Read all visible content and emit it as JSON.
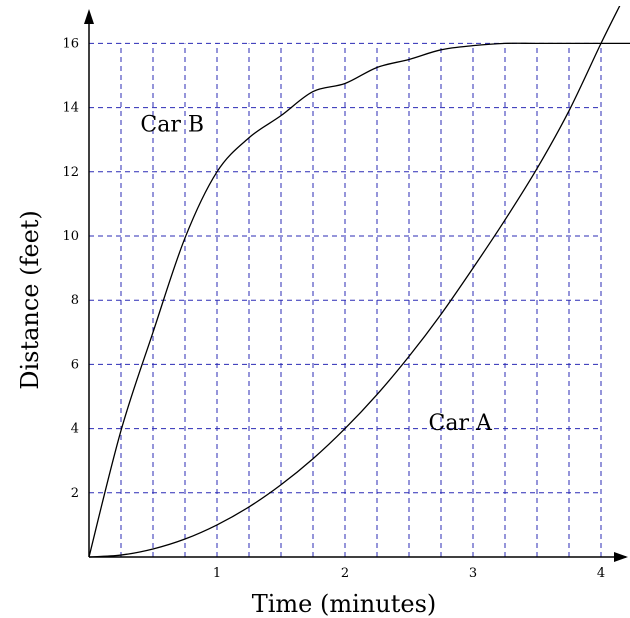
{
  "chart_data": {
    "type": "line",
    "title": "",
    "xlabel": "Time (minutes)",
    "ylabel": "Distance (feet)",
    "xlim": [
      0,
      4.2
    ],
    "ylim": [
      0,
      16.6
    ],
    "grid": true,
    "x_gridlines": [
      0.25,
      0.5,
      0.75,
      1,
      1.25,
      1.5,
      1.75,
      2,
      2.25,
      2.5,
      2.75,
      3,
      3.25,
      3.5,
      3.75,
      4
    ],
    "y_gridlines": [
      2,
      4,
      6,
      8,
      10,
      12,
      14,
      16
    ],
    "x_ticks": [
      {
        "value": 1,
        "label": "1"
      },
      {
        "value": 2,
        "label": "2"
      },
      {
        "value": 3,
        "label": "3"
      },
      {
        "value": 4,
        "label": "4"
      }
    ],
    "y_ticks": [
      {
        "value": 2,
        "label": "2"
      },
      {
        "value": 4,
        "label": "4"
      },
      {
        "value": 6,
        "label": "6"
      },
      {
        "value": 8,
        "label": "8"
      },
      {
        "value": 10,
        "label": "10"
      },
      {
        "value": 12,
        "label": "12"
      },
      {
        "value": 14,
        "label": "14"
      },
      {
        "value": 16,
        "label": "16"
      }
    ],
    "colors": {
      "grid": "#2b2bb5",
      "curves": "#000000",
      "axes": "#000000"
    },
    "series": [
      {
        "name": "Car A",
        "x": [
          0,
          0.25,
          0.5,
          0.75,
          1,
          1.25,
          1.5,
          1.75,
          2,
          2.25,
          2.5,
          2.75,
          3,
          3.25,
          3.5,
          3.75,
          4,
          4.15
        ],
        "y": [
          0,
          0.06,
          0.25,
          0.56,
          1,
          1.56,
          2.25,
          3.06,
          4,
          5.06,
          6.25,
          7.56,
          9.0,
          10.5,
          12.1,
          13.9,
          16.0,
          17.2
        ]
      },
      {
        "name": "Car B",
        "x": [
          0,
          0.25,
          0.5,
          0.75,
          1,
          1.25,
          1.5,
          1.75,
          2,
          2.25,
          2.5,
          2.75,
          3,
          3.25,
          3.5,
          3.75,
          4,
          4.25
        ],
        "y": [
          0,
          3.94,
          7.0,
          9.94,
          12.0,
          13.06,
          13.75,
          14.5,
          14.75,
          15.25,
          15.5,
          15.8,
          15.93,
          16.0,
          16.0,
          16.0,
          16.0,
          16.0
        ]
      }
    ],
    "annotations": [
      {
        "text": "Car B",
        "series": "Car B",
        "x": 0.65,
        "y": 13.5
      },
      {
        "text": "Car A",
        "series": "Car A",
        "x": 2.9,
        "y": 4.2
      }
    ]
  }
}
